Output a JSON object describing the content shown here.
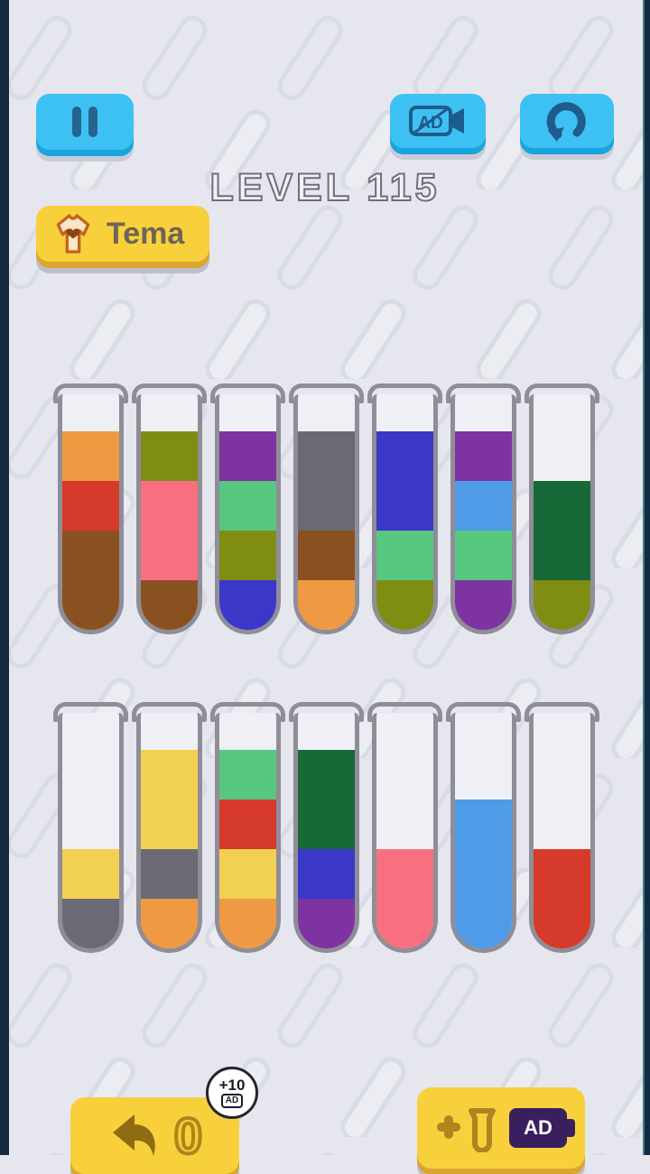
{
  "app": {
    "background": "#E6E7EE",
    "edge_color": "#132A40"
  },
  "header": {
    "level_label": "LEVEL 115",
    "theme_button_label": "Tema"
  },
  "icons": {
    "pause": "pause-icon",
    "ad_video": "ad-video-camera-icon",
    "restart": "restart-icon",
    "tshirt": "tshirt-theme-icon",
    "undo": "undo-arrow-icon",
    "add_tube": "plus-tube-icon",
    "ad_chip": "ad-video-camera-icon"
  },
  "palette": {
    "orange": "#EF9A42",
    "red": "#D63A2A",
    "brown": "#8A5120",
    "olive": "#7F8D13",
    "pink": "#F8707F",
    "purple": "#7D34A0",
    "mint": "#58C77F",
    "blue": "#3B38C9",
    "gray": "#6B6973",
    "darkgreen": "#176A38",
    "sky": "#4F9BE8",
    "yellow": "#F2D052"
  },
  "board": {
    "capacity": 4,
    "rows": [
      [
        {
          "segments": [
            "orange",
            "red",
            "brown",
            "brown"
          ]
        },
        {
          "segments": [
            "olive",
            "pink",
            "pink",
            "brown"
          ]
        },
        {
          "segments": [
            "purple",
            "mint",
            "olive",
            "blue"
          ]
        },
        {
          "segments": [
            "gray",
            "gray",
            "brown",
            "orange"
          ]
        },
        {
          "segments": [
            "blue",
            "blue",
            "mint",
            "olive"
          ]
        },
        {
          "segments": [
            "purple",
            "sky",
            "mint",
            "purple"
          ]
        },
        {
          "segments": [
            "darkgreen",
            "darkgreen",
            "olive"
          ]
        }
      ],
      [
        {
          "segments": [
            "yellow",
            "gray"
          ]
        },
        {
          "segments": [
            "yellow",
            "yellow",
            "gray",
            "orange"
          ]
        },
        {
          "segments": [
            "mint",
            "red",
            "yellow",
            "orange"
          ]
        },
        {
          "segments": [
            "darkgreen",
            "darkgreen",
            "blue",
            "purple"
          ]
        },
        {
          "segments": [
            "pink",
            "pink"
          ]
        },
        {
          "segments": [
            "sky",
            "sky",
            "sky"
          ]
        },
        {
          "segments": [
            "red",
            "red"
          ]
        }
      ]
    ]
  },
  "footer": {
    "undo_count": "0",
    "badge_bonus": "+10",
    "badge_ad_label": "AD",
    "ad_chip_label": "AD"
  }
}
